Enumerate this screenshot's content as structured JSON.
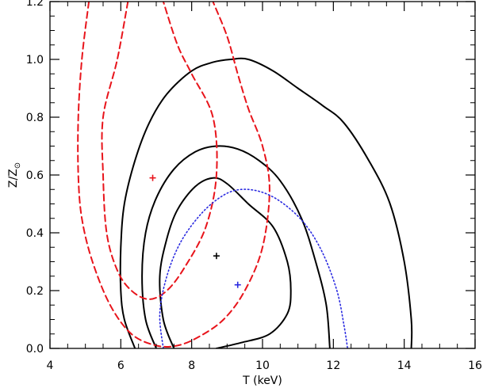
{
  "chart_data": {
    "type": "contour",
    "xlabel": "T (keV)",
    "ylabel": "Z/Z",
    "ylabel_sub": "⊙",
    "xlim": [
      4,
      16
    ],
    "ylim": [
      0,
      1.2
    ],
    "x_ticks": [
      "4",
      "6",
      "8",
      "10",
      "12",
      "14",
      "16"
    ],
    "y_ticks": [
      "0.0",
      "0.2",
      "0.4",
      "0.6",
      "0.8",
      "1.0",
      "1.2"
    ],
    "x_tick_values": [
      4,
      6,
      8,
      10,
      12,
      14,
      16
    ],
    "y_tick_values": [
      0,
      0.2,
      0.4,
      0.6,
      0.8,
      1.0,
      1.2
    ],
    "x_minor_step": 0.5,
    "y_minor_step": 0.05,
    "series": [
      {
        "style": "solid",
        "color": "#000000",
        "best_fit": [
          8.7,
          0.32
        ],
        "contours": [
          [
            [
              6.4,
              0.0
            ],
            [
              6.1,
              0.1
            ],
            [
              6.0,
              0.2
            ],
            [
              6.0,
              0.35
            ],
            [
              6.1,
              0.5
            ],
            [
              6.4,
              0.65
            ],
            [
              6.8,
              0.78
            ],
            [
              7.3,
              0.88
            ],
            [
              8.0,
              0.96
            ],
            [
              8.6,
              0.99
            ],
            [
              9.1,
              1.0
            ],
            [
              9.6,
              1.0
            ],
            [
              10.3,
              0.96
            ],
            [
              11.0,
              0.9
            ],
            [
              11.7,
              0.84
            ],
            [
              12.3,
              0.78
            ],
            [
              13.0,
              0.65
            ],
            [
              13.6,
              0.5
            ],
            [
              14.0,
              0.3
            ],
            [
              14.2,
              0.1
            ],
            [
              14.2,
              0.0
            ]
          ],
          [
            [
              7.0,
              0.0
            ],
            [
              6.7,
              0.1
            ],
            [
              6.6,
              0.25
            ],
            [
              6.7,
              0.4
            ],
            [
              7.0,
              0.52
            ],
            [
              7.5,
              0.62
            ],
            [
              8.1,
              0.68
            ],
            [
              8.7,
              0.7
            ],
            [
              9.3,
              0.69
            ],
            [
              9.9,
              0.65
            ],
            [
              10.5,
              0.58
            ],
            [
              11.1,
              0.45
            ],
            [
              11.5,
              0.3
            ],
            [
              11.8,
              0.15
            ],
            [
              11.9,
              0.0
            ]
          ],
          [
            [
              7.5,
              0.0
            ],
            [
              7.2,
              0.1
            ],
            [
              7.1,
              0.25
            ],
            [
              7.3,
              0.38
            ],
            [
              7.6,
              0.48
            ],
            [
              8.1,
              0.56
            ],
            [
              8.6,
              0.59
            ],
            [
              9.0,
              0.57
            ],
            [
              9.6,
              0.5
            ],
            [
              10.3,
              0.42
            ],
            [
              10.7,
              0.3
            ],
            [
              10.8,
              0.2
            ],
            [
              10.7,
              0.12
            ],
            [
              10.2,
              0.05
            ],
            [
              9.4,
              0.02
            ],
            [
              8.7,
              0.0
            ]
          ]
        ]
      },
      {
        "style": "dashed",
        "color": "#e8141b",
        "best_fit": [
          6.9,
          0.59
        ],
        "contours": [
          [
            [
              5.1,
              1.2
            ],
            [
              4.9,
              1.0
            ],
            [
              4.8,
              0.8
            ],
            [
              4.8,
              0.6
            ],
            [
              4.9,
              0.45
            ],
            [
              5.2,
              0.3
            ],
            [
              5.7,
              0.15
            ],
            [
              6.3,
              0.05
            ],
            [
              7.0,
              0.01
            ],
            [
              7.6,
              0.01
            ],
            [
              8.2,
              0.04
            ],
            [
              8.9,
              0.1
            ],
            [
              9.5,
              0.2
            ],
            [
              10.0,
              0.35
            ],
            [
              10.2,
              0.55
            ],
            [
              10.0,
              0.7
            ],
            [
              9.6,
              0.83
            ],
            [
              9.3,
              0.95
            ],
            [
              9.0,
              1.08
            ],
            [
              8.6,
              1.2
            ]
          ],
          [
            [
              6.2,
              1.2
            ],
            [
              5.9,
              1.0
            ],
            [
              5.5,
              0.8
            ],
            [
              5.5,
              0.6
            ],
            [
              5.6,
              0.4
            ],
            [
              5.9,
              0.27
            ],
            [
              6.3,
              0.2
            ],
            [
              6.8,
              0.17
            ],
            [
              7.3,
              0.2
            ],
            [
              7.8,
              0.28
            ],
            [
              8.4,
              0.42
            ],
            [
              8.7,
              0.6
            ],
            [
              8.6,
              0.8
            ],
            [
              8.0,
              0.95
            ],
            [
              7.6,
              1.05
            ],
            [
              7.2,
              1.2
            ]
          ]
        ]
      },
      {
        "style": "dotted",
        "color": "#2a2ae0",
        "best_fit": [
          9.3,
          0.22
        ],
        "contours": [
          [
            [
              7.2,
              0.0
            ],
            [
              7.1,
              0.12
            ],
            [
              7.3,
              0.25
            ],
            [
              7.7,
              0.37
            ],
            [
              8.3,
              0.47
            ],
            [
              8.9,
              0.53
            ],
            [
              9.4,
              0.55
            ],
            [
              10.0,
              0.54
            ],
            [
              10.6,
              0.5
            ],
            [
              11.2,
              0.43
            ],
            [
              11.7,
              0.33
            ],
            [
              12.1,
              0.2
            ],
            [
              12.3,
              0.08
            ],
            [
              12.4,
              0.0
            ]
          ]
        ]
      }
    ]
  }
}
